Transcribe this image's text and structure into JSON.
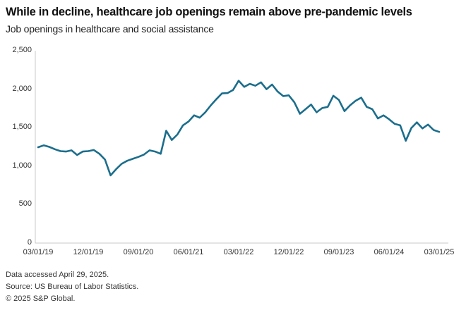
{
  "header": {
    "title": "While in decline, healthcare job openings remain above pre-pandemic levels",
    "subtitle": "Job openings in healthcare and social assistance"
  },
  "chart_data": {
    "type": "line",
    "title": "While in decline, healthcare job openings remain above pre-pandemic levels",
    "subtitle": "Job openings in healthcare and social assistance",
    "xlabel": "",
    "ylabel": "",
    "ylim": [
      0,
      2500
    ],
    "grid": false,
    "legend": false,
    "frequency": "monthly",
    "x_start": "03/01/19",
    "x_end": "03/01/25",
    "y_tick_labels": [
      "0",
      "500",
      "1,000",
      "1,500",
      "2,000",
      "2,500"
    ],
    "x_tick_labels": [
      "03/01/19",
      "12/01/19",
      "09/01/20",
      "06/01/21",
      "03/01/22",
      "12/01/22",
      "09/01/23",
      "06/01/24",
      "03/01/25"
    ],
    "line_color": "#1b6e8c",
    "axis_color": "#c9c9c9",
    "series": [
      {
        "name": "Job openings in healthcare and social assistance (thousands)",
        "values": [
          1245,
          1270,
          1250,
          1220,
          1195,
          1190,
          1205,
          1145,
          1190,
          1195,
          1210,
          1160,
          1085,
          880,
          960,
          1030,
          1070,
          1095,
          1120,
          1150,
          1205,
          1190,
          1160,
          1460,
          1340,
          1410,
          1530,
          1580,
          1660,
          1630,
          1700,
          1790,
          1870,
          1945,
          1950,
          1990,
          2110,
          2030,
          2070,
          2045,
          2090,
          2000,
          2060,
          1970,
          1910,
          1920,
          1830,
          1680,
          1740,
          1800,
          1700,
          1755,
          1770,
          1915,
          1860,
          1715,
          1790,
          1850,
          1890,
          1770,
          1740,
          1620,
          1660,
          1610,
          1550,
          1530,
          1330,
          1495,
          1570,
          1490,
          1540,
          1470,
          1445
        ]
      }
    ]
  },
  "footer": {
    "line1": "Data accessed April 29, 2025.",
    "line2": "Source: US Bureau of Labor Statistics.",
    "line3": "© 2025 S&P Global."
  }
}
